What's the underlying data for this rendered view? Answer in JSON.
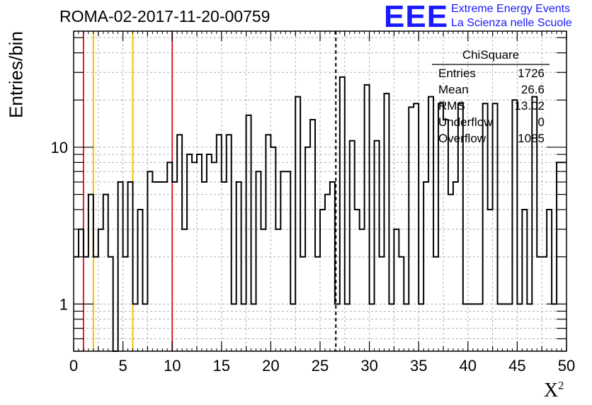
{
  "chart_data": {
    "type": "bar",
    "title": "ROMA-02-2017-11-20-00759",
    "xlabel": "X",
    "xlabel_sup": "2",
    "ylabel": "Entries/bin",
    "xlim": [
      0,
      50
    ],
    "ylim": [
      0.5,
      55
    ],
    "yscale": "log",
    "grid": true,
    "bin_width": 0.5,
    "x_ticks": [
      "0",
      "5",
      "10",
      "15",
      "20",
      "25",
      "30",
      "35",
      "40",
      "45",
      "50"
    ],
    "y_ticks": [
      "1",
      "10"
    ],
    "values": [
      2,
      3,
      2,
      5,
      2,
      3,
      5,
      2,
      0,
      6,
      2,
      6,
      1,
      4,
      1,
      7,
      6,
      6,
      6,
      8,
      6,
      12,
      3,
      9,
      8,
      9,
      6,
      9,
      8,
      12,
      6,
      12,
      1,
      6,
      1,
      16,
      1,
      7,
      3,
      12,
      10,
      3,
      7,
      7,
      1,
      21,
      2,
      10,
      15,
      2,
      4,
      5,
      6,
      1,
      28,
      1,
      11,
      4,
      3,
      25,
      1,
      11,
      2,
      22,
      1,
      3,
      2,
      1,
      18,
      19,
      1,
      6,
      21,
      2,
      19,
      15,
      5,
      6,
      19,
      1,
      1,
      1,
      1,
      19,
      4,
      19,
      1,
      1,
      1,
      20,
      1,
      4,
      1,
      21,
      2,
      2,
      4,
      1,
      8,
      8
    ],
    "vlines": [
      {
        "x": 1,
        "color": "#dd2222"
      },
      {
        "x": 2,
        "color": "#f2c200"
      },
      {
        "x": 6,
        "color": "#f2c200"
      },
      {
        "x": 10,
        "color": "#dd2222"
      }
    ],
    "mean_line_x": 26.6,
    "stats": {
      "name": "ChiSquare",
      "rows": [
        {
          "label": "Entries",
          "value": "1726"
        },
        {
          "label": "Mean",
          "value": "26.6"
        },
        {
          "label": "RMS",
          "value": "13.02"
        },
        {
          "label": "Underflow",
          "value": "0"
        },
        {
          "label": "Overflow",
          "value": "1085"
        }
      ]
    },
    "legend_placement": "top-right"
  },
  "logo": {
    "mark": "EEE",
    "line1": "Extreme Energy Events",
    "line2": "La Scienza nelle Scuole",
    "color": "#1a1aff"
  }
}
